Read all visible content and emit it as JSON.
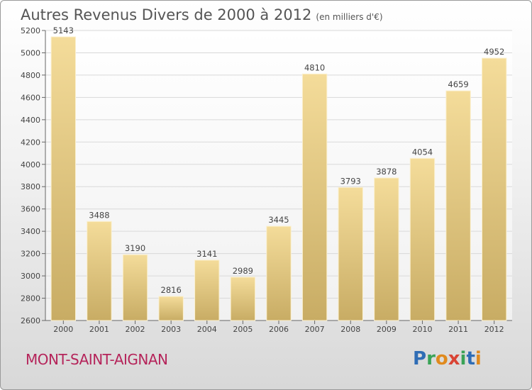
{
  "title": "Autres Revenus Divers de 2000 à 2012",
  "unit": "(en milliers d'€)",
  "city": "MONT-SAINT-AIGNAN",
  "logo": {
    "letters": [
      "P",
      "r",
      "o",
      "x",
      "i",
      "t",
      "i"
    ],
    "colors": [
      "#2f6db5",
      "#3aa357",
      "#e08a1e",
      "#d94435",
      "#3aa357",
      "#2f6db5",
      "#e08a1e"
    ]
  },
  "chart_data": {
    "type": "bar",
    "categories": [
      "2000",
      "2001",
      "2002",
      "2003",
      "2004",
      "2005",
      "2006",
      "2007",
      "2008",
      "2009",
      "2010",
      "2011",
      "2012"
    ],
    "values": [
      5143,
      3488,
      3190,
      2816,
      3141,
      2989,
      3445,
      4810,
      3793,
      3878,
      4054,
      4659,
      4952
    ],
    "title": "Autres Revenus Divers de 2000 à 2012",
    "xlabel": "",
    "ylabel": "",
    "ylim": [
      2600,
      5200
    ],
    "yticks": [
      2600,
      2800,
      3000,
      3200,
      3400,
      3600,
      3800,
      4000,
      4200,
      4400,
      4600,
      4800,
      5000,
      5200
    ],
    "grid": true,
    "colors": {
      "bar_light": "#f4dc9a",
      "bar_dark": "#c8ac64",
      "grid": "#d9d9d9",
      "axis": "#666666",
      "text": "#444444"
    }
  }
}
